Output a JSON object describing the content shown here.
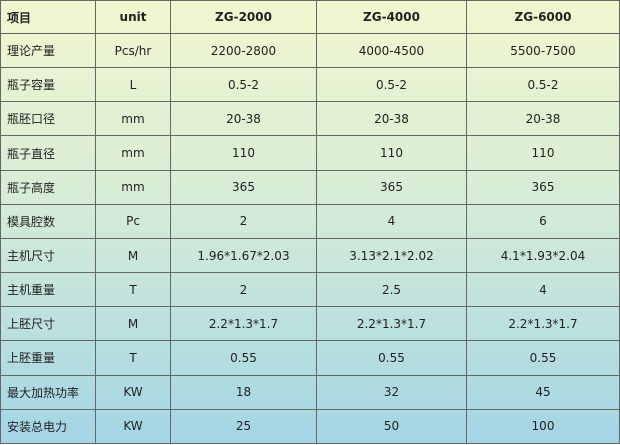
{
  "table": {
    "header": [
      "项目",
      "unit",
      "ZG-2000",
      "ZG-4000",
      "ZG-6000"
    ],
    "rows": [
      [
        "理论产量",
        "Pcs/hr",
        "2200-2800",
        "4000-4500",
        "5500-7500"
      ],
      [
        "瓶子容量",
        "L",
        "0.5-2",
        "0.5-2",
        "0.5-2"
      ],
      [
        "瓶胚口径",
        "mm",
        "20-38",
        "20-38",
        "20-38"
      ],
      [
        "瓶子直径",
        "mm",
        "110",
        "110",
        "110"
      ],
      [
        "瓶子高度",
        "mm",
        "365",
        "365",
        "365"
      ],
      [
        "模具腔数",
        "Pc",
        "2",
        "4",
        "6"
      ],
      [
        "主机尺寸",
        "M",
        "1.96*1.67*2.03",
        "3.13*2.1*2.02",
        "4.1*1.93*2.04"
      ],
      [
        "主机重量",
        "T",
        "2",
        "2.5",
        "4"
      ],
      [
        "上胚尺寸",
        "M",
        "2.2*1.3*1.7",
        "2.2*1.3*1.7",
        "2.2*1.3*1.7"
      ],
      [
        "上胚重量",
        "T",
        "0.55",
        "0.55",
        "0.55"
      ],
      [
        "最大加热功率",
        "KW",
        "18",
        "32",
        "45"
      ],
      [
        "安装总电力",
        "KW",
        "25",
        "50",
        "100"
      ]
    ]
  }
}
